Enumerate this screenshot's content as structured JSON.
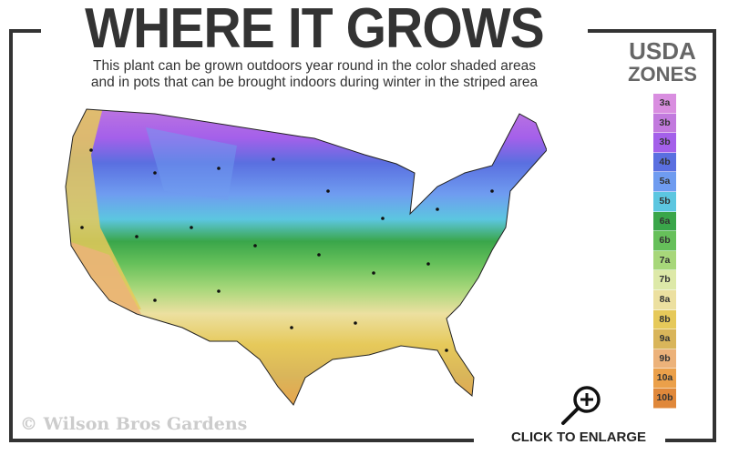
{
  "header": {
    "title": "WHERE IT GROWS",
    "subtitle_line1": "This plant can be grown outdoors year round in the color shaded areas",
    "subtitle_line2": "and in pots that can be brought indoors during winter in the striped area"
  },
  "legend": {
    "title_line1": "USDA",
    "title_line2": "ZONES",
    "zones": [
      {
        "label": "3a",
        "color": "#d98ee0"
      },
      {
        "label": "3b",
        "color": "#c27ade"
      },
      {
        "label": "3b",
        "color": "#a460ea"
      },
      {
        "label": "4b",
        "color": "#5a6fe0"
      },
      {
        "label": "5a",
        "color": "#6f9cf0"
      },
      {
        "label": "5b",
        "color": "#5cc6e0"
      },
      {
        "label": "6a",
        "color": "#3aa64a"
      },
      {
        "label": "6b",
        "color": "#66c05a"
      },
      {
        "label": "7a",
        "color": "#a7d77a"
      },
      {
        "label": "7b",
        "color": "#dde9a8"
      },
      {
        "label": "8a",
        "color": "#ece0a0"
      },
      {
        "label": "8b",
        "color": "#e6c95a"
      },
      {
        "label": "9a",
        "color": "#d9b55a"
      },
      {
        "label": "9b",
        "color": "#ecb27a"
      },
      {
        "label": "10a",
        "color": "#eba04a"
      },
      {
        "label": "10b",
        "color": "#e0883a"
      }
    ]
  },
  "footer": {
    "copyright": "© Wilson Bros Gardens",
    "enlarge_label": "CLICK TO ENLARGE",
    "enlarge_icon": "zoom-in-magnifier-icon"
  }
}
